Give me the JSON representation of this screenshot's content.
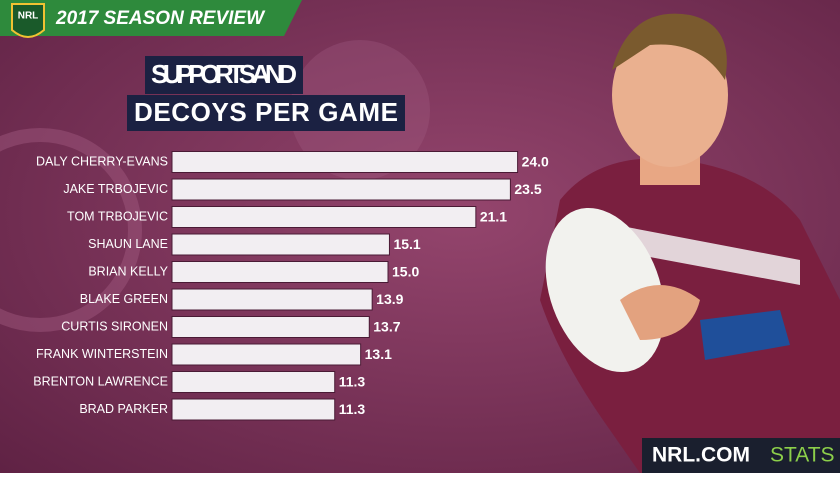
{
  "header": {
    "logo": "NRL",
    "season": "2017 SEASON REVIEW"
  },
  "chart_data": {
    "type": "hbar",
    "title_lines": [
      "SUPPORTS AND",
      "DECOYS PER GAME"
    ],
    "categories": [
      "DALY CHERRY-EVANS",
      "JAKE TRBOJEVIC",
      "TOM TRBOJEVIC",
      "SHAUN LANE",
      "BRIAN KELLY",
      "BLAKE GREEN",
      "CURTIS SIRONEN",
      "FRANK WINTERSTEIN",
      "BRENTON LAWRENCE",
      "BRAD PARKER"
    ],
    "values": [
      24.0,
      23.5,
      21.1,
      15.1,
      15.0,
      13.9,
      13.7,
      13.1,
      11.3,
      11.3
    ],
    "value_labels": [
      "24.0",
      "23.5",
      "21.1",
      "15.1",
      "15.0",
      "13.9",
      "13.7",
      "13.1",
      "11.3",
      "11.3"
    ],
    "color": "#f2eef2"
  },
  "footer": {
    "brand": "NRL.COM",
    "section": "STATS"
  }
}
